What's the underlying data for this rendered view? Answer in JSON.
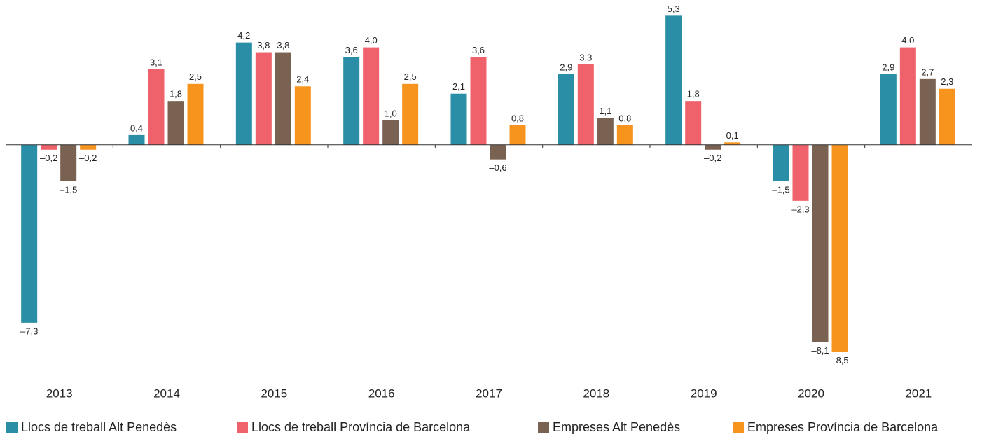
{
  "chart_data": {
    "type": "bar",
    "categories": [
      "2013",
      "2014",
      "2015",
      "2016",
      "2017",
      "2018",
      "2019",
      "2020",
      "2021"
    ],
    "ylim": [
      -9.5,
      6
    ],
    "series": [
      {
        "name": "Llocs de treball Alt Penedès",
        "color": "#2a8fa6",
        "values": [
          -7.3,
          0.4,
          4.2,
          3.6,
          2.1,
          2.9,
          5.3,
          -1.5,
          2.9
        ],
        "value_labels": [
          "–7,3",
          "0,4",
          "4,2",
          "3,6",
          "2,1",
          "2,9",
          "5,3",
          "–1,5",
          "2,9"
        ]
      },
      {
        "name": "Llocs de treball Província de Barcelona",
        "color": "#f0626b",
        "values": [
          -0.2,
          3.1,
          3.8,
          4.0,
          3.6,
          3.3,
          1.8,
          -2.3,
          4.0
        ],
        "value_labels": [
          "–0,2",
          "3,1",
          "3,8",
          "4,0",
          "3,6",
          "3,3",
          "1,8",
          "–2,3",
          "4,0"
        ]
      },
      {
        "name": "Empreses Alt Penedès",
        "color": "#7a6252",
        "values": [
          -1.5,
          1.8,
          3.8,
          1.0,
          -0.6,
          1.1,
          -0.2,
          -8.1,
          2.7
        ],
        "value_labels": [
          "–1,5",
          "1,8",
          "3,8",
          "1,0",
          "–0,6",
          "1,1",
          "–0,2",
          "–8,1",
          "2,7"
        ]
      },
      {
        "name": "Empreses Província de Barcelona",
        "color": "#f7941d",
        "values": [
          -0.2,
          2.5,
          2.4,
          2.5,
          0.8,
          0.8,
          0.1,
          -8.5,
          2.3
        ],
        "value_labels": [
          "–0,2",
          "2,5",
          "2,4",
          "2,5",
          "0,8",
          "0,8",
          "0,1",
          "–8,5",
          "2,3"
        ]
      }
    ]
  }
}
